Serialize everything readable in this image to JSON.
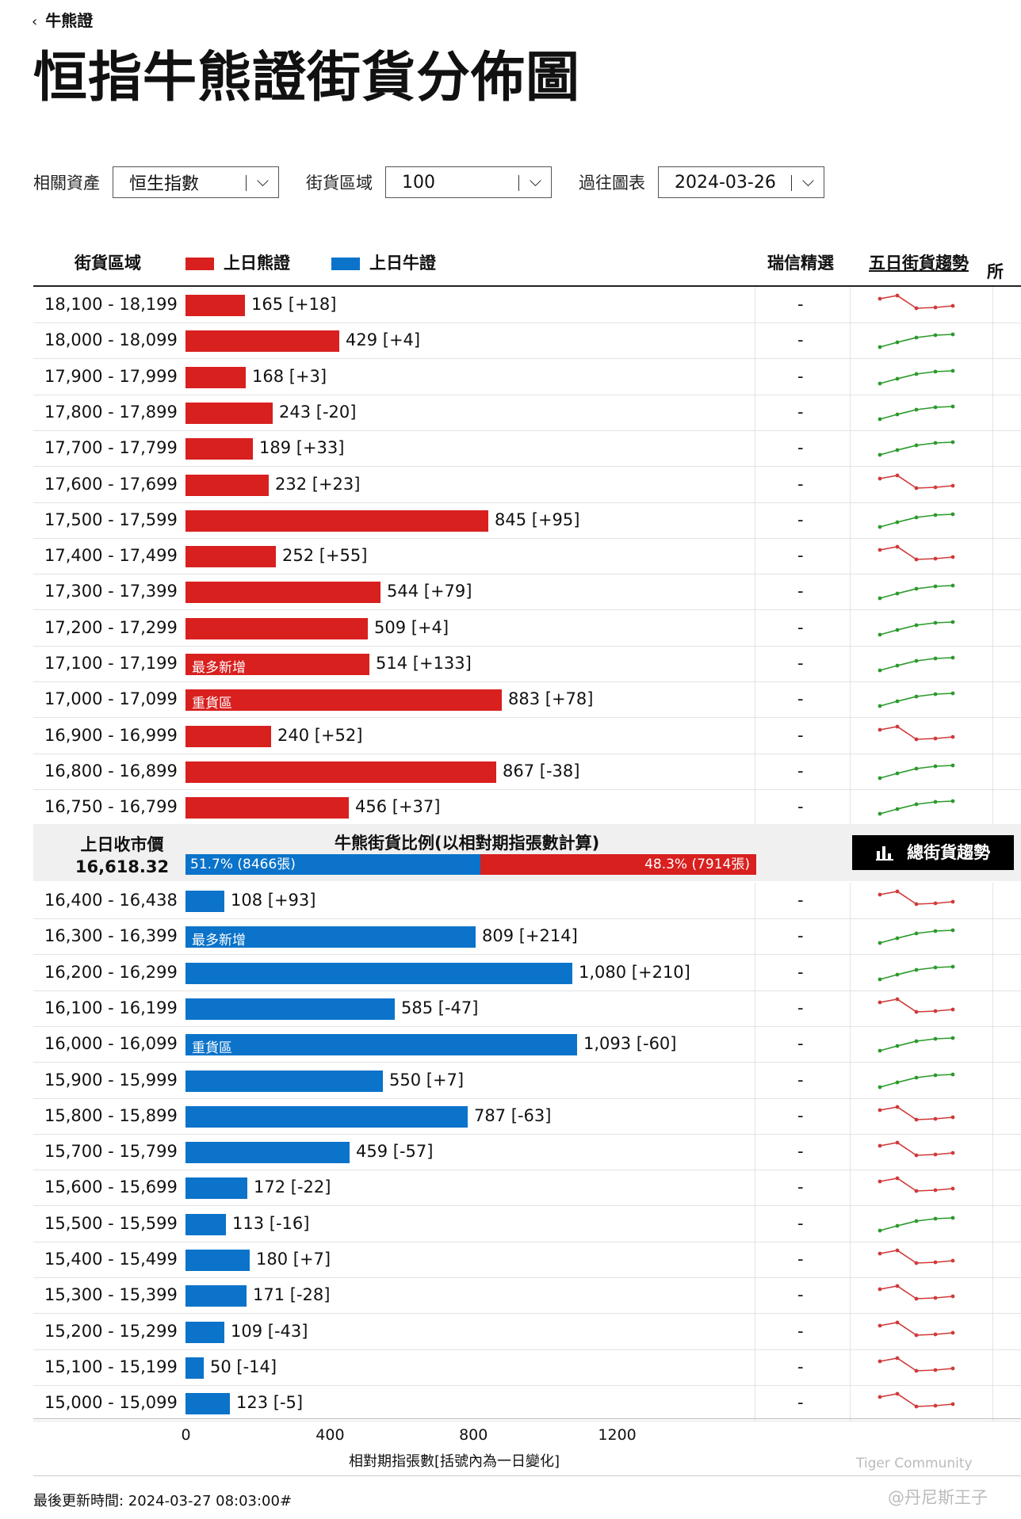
{
  "nav": {
    "back_label": "牛熊證"
  },
  "page_title": "恒指牛熊證街貨分佈圖",
  "filters": [
    {
      "label": "相關資產",
      "value": "恒生指數"
    },
    {
      "label": "街貨區域",
      "value": "100"
    },
    {
      "label": "過往圖表",
      "value": "2024-03-26"
    }
  ],
  "legend": {
    "range_col": "街貨區域",
    "bear": "上日熊證",
    "bull": "上日牛證",
    "pick_col": "瑞信精選",
    "trend_col": "五日街貨趨勢",
    "edge_col": "所"
  },
  "colors": {
    "bear": "#d8201f",
    "bull": "#0b73c9",
    "up": "#2b9a2b",
    "down": "#d03a3a"
  },
  "bear_rows": [
    {
      "range": "18,100 - 18,199",
      "value": 165,
      "label": "165 [+18]",
      "tag": "",
      "pick": "-",
      "trend": "down"
    },
    {
      "range": "18,000 - 18,099",
      "value": 429,
      "label": "429 [+4]",
      "tag": "",
      "pick": "-",
      "trend": "up"
    },
    {
      "range": "17,900 - 17,999",
      "value": 168,
      "label": "168 [+3]",
      "tag": "",
      "pick": "-",
      "trend": "up"
    },
    {
      "range": "17,800 - 17,899",
      "value": 243,
      "label": "243 [-20]",
      "tag": "",
      "pick": "-",
      "trend": "up"
    },
    {
      "range": "17,700 - 17,799",
      "value": 189,
      "label": "189 [+33]",
      "tag": "",
      "pick": "-",
      "trend": "up"
    },
    {
      "range": "17,600 - 17,699",
      "value": 232,
      "label": "232 [+23]",
      "tag": "",
      "pick": "-",
      "trend": "down"
    },
    {
      "range": "17,500 - 17,599",
      "value": 845,
      "label": "845 [+95]",
      "tag": "",
      "pick": "-",
      "trend": "up"
    },
    {
      "range": "17,400 - 17,499",
      "value": 252,
      "label": "252 [+55]",
      "tag": "",
      "pick": "-",
      "trend": "down"
    },
    {
      "range": "17,300 - 17,399",
      "value": 544,
      "label": "544 [+79]",
      "tag": "",
      "pick": "-",
      "trend": "up"
    },
    {
      "range": "17,200 - 17,299",
      "value": 509,
      "label": "509 [+4]",
      "tag": "",
      "pick": "-",
      "trend": "up"
    },
    {
      "range": "17,100 - 17,199",
      "value": 514,
      "label": "514 [+133]",
      "tag": "最多新增",
      "pick": "-",
      "trend": "up"
    },
    {
      "range": "17,000 - 17,099",
      "value": 883,
      "label": "883 [+78]",
      "tag": "重貨區",
      "pick": "-",
      "trend": "up"
    },
    {
      "range": "16,900 - 16,999",
      "value": 240,
      "label": "240 [+52]",
      "tag": "",
      "pick": "-",
      "trend": "down"
    },
    {
      "range": "16,800 - 16,899",
      "value": 867,
      "label": "867 [-38]",
      "tag": "",
      "pick": "-",
      "trend": "up"
    },
    {
      "range": "16,750 - 16,799",
      "value": 456,
      "label": "456 [+37]",
      "tag": "",
      "pick": "-",
      "trend": "up"
    }
  ],
  "middle": {
    "close_label": "上日收市價",
    "close_value": "16,618.32",
    "ratio_title": "牛熊街貨比例(以相對期指張數計算)",
    "bull_pct": 51.7,
    "bull_label": "51.7% (8466張)",
    "bear_pct": 48.3,
    "bear_label": "48.3% (7914張)",
    "trend_button": "總街貨趨勢"
  },
  "bull_rows": [
    {
      "range": "16,400 - 16,438",
      "value": 108,
      "label": "108 [+93]",
      "tag": "",
      "pick": "-",
      "trend": "down"
    },
    {
      "range": "16,300 - 16,399",
      "value": 809,
      "label": "809 [+214]",
      "tag": "最多新增",
      "pick": "-",
      "trend": "up"
    },
    {
      "range": "16,200 - 16,299",
      "value": 1080,
      "label": "1,080 [+210]",
      "tag": "",
      "pick": "-",
      "trend": "up"
    },
    {
      "range": "16,100 - 16,199",
      "value": 585,
      "label": "585 [-47]",
      "tag": "",
      "pick": "-",
      "trend": "down"
    },
    {
      "range": "16,000 - 16,099",
      "value": 1093,
      "label": "1,093 [-60]",
      "tag": "重貨區",
      "pick": "-",
      "trend": "up"
    },
    {
      "range": "15,900 - 15,999",
      "value": 550,
      "label": "550 [+7]",
      "tag": "",
      "pick": "-",
      "trend": "up"
    },
    {
      "range": "15,800 - 15,899",
      "value": 787,
      "label": "787 [-63]",
      "tag": "",
      "pick": "-",
      "trend": "down"
    },
    {
      "range": "15,700 - 15,799",
      "value": 459,
      "label": "459 [-57]",
      "tag": "",
      "pick": "-",
      "trend": "down"
    },
    {
      "range": "15,600 - 15,699",
      "value": 172,
      "label": "172 [-22]",
      "tag": "",
      "pick": "-",
      "trend": "down"
    },
    {
      "range": "15,500 - 15,599",
      "value": 113,
      "label": "113 [-16]",
      "tag": "",
      "pick": "-",
      "trend": "up"
    },
    {
      "range": "15,400 - 15,499",
      "value": 180,
      "label": "180 [+7]",
      "tag": "",
      "pick": "-",
      "trend": "down"
    },
    {
      "range": "15,300 - 15,399",
      "value": 171,
      "label": "171 [-28]",
      "tag": "",
      "pick": "-",
      "trend": "down"
    },
    {
      "range": "15,200 - 15,299",
      "value": 109,
      "label": "109 [-43]",
      "tag": "",
      "pick": "-",
      "trend": "down"
    },
    {
      "range": "15,100 - 15,199",
      "value": 50,
      "label": "50 [-14]",
      "tag": "",
      "pick": "-",
      "trend": "down"
    },
    {
      "range": "15,000 - 15,099",
      "value": 123,
      "label": "123 [-5]",
      "tag": "",
      "pick": "-",
      "trend": "down"
    }
  ],
  "axis": {
    "ticks": [
      "0",
      "400",
      "800",
      "1200"
    ],
    "max": 1200,
    "label": "相對期指張數[括號內為一日變化]"
  },
  "footer": {
    "updated": "最後更新時間: 2024-03-27 08:03:00#"
  },
  "watermark": {
    "community": "Tiger Community",
    "author": "@丹尼斯王子"
  }
}
